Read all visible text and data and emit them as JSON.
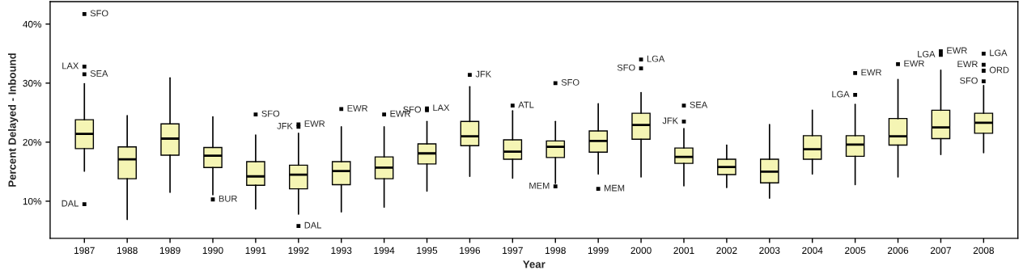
{
  "chart_data": {
    "type": "box",
    "xlabel": "Year",
    "ylabel": "Percent Delayed - Inbound",
    "x": [
      1987,
      1988,
      1989,
      1990,
      1991,
      1992,
      1993,
      1994,
      1995,
      1996,
      1997,
      1998,
      1999,
      2000,
      2001,
      2002,
      2003,
      2004,
      2005,
      2006,
      2007,
      2008
    ],
    "xlim": [
      1986.2,
      2008.8
    ],
    "xticks": [
      1987,
      1988,
      1989,
      1990,
      1991,
      1992,
      1993,
      1994,
      1995,
      1996,
      1997,
      1998,
      1999,
      2000,
      2001,
      2002,
      2003,
      2004,
      2005,
      2006,
      2007,
      2008
    ],
    "color": "#f5f5b4",
    "marker": "square",
    "grid": false,
    "legend": false,
    "ylim": [
      3.7,
      43.8
    ],
    "yticks": [
      {
        "value": 10,
        "label": "10%"
      },
      {
        "value": 20,
        "label": "20%"
      },
      {
        "value": 30,
        "label": "30%"
      },
      {
        "value": 40,
        "label": "40%"
      }
    ],
    "boxes": [
      {
        "low": 15.1,
        "q1": 18.9,
        "median": 21.4,
        "q3": 23.8,
        "high": 29.9
      },
      {
        "low": 6.9,
        "q1": 13.8,
        "median": 17.1,
        "q3": 19.2,
        "high": 24.5
      },
      {
        "low": 11.5,
        "q1": 17.8,
        "median": 20.6,
        "q3": 23.1,
        "high": 30.9
      },
      {
        "low": 11.1,
        "q1": 15.7,
        "median": 17.7,
        "q3": 19.1,
        "high": 24.3
      },
      {
        "low": 8.7,
        "q1": 12.7,
        "median": 14.2,
        "q3": 16.7,
        "high": 21.2
      },
      {
        "low": 7.8,
        "q1": 12.1,
        "median": 14.5,
        "q3": 16.1,
        "high": 21.5
      },
      {
        "low": 8.2,
        "q1": 12.8,
        "median": 15.1,
        "q3": 16.7,
        "high": 22.6
      },
      {
        "low": 9.0,
        "q1": 13.8,
        "median": 15.7,
        "q3": 17.5,
        "high": 22.6
      },
      {
        "low": 11.7,
        "q1": 16.3,
        "median": 18.1,
        "q3": 19.7,
        "high": 23.5
      },
      {
        "low": 14.2,
        "q1": 19.4,
        "median": 21.0,
        "q3": 23.5,
        "high": 29.4
      },
      {
        "low": 13.9,
        "q1": 17.1,
        "median": 18.4,
        "q3": 20.4,
        "high": 25.3
      },
      {
        "low": 13.0,
        "q1": 17.4,
        "median": 19.2,
        "q3": 20.2,
        "high": 23.5
      },
      {
        "low": 14.6,
        "q1": 18.3,
        "median": 20.2,
        "q3": 21.9,
        "high": 26.5
      },
      {
        "low": 14.1,
        "q1": 20.5,
        "median": 22.9,
        "q3": 24.9,
        "high": 28.4
      },
      {
        "low": 12.6,
        "q1": 16.4,
        "median": 17.5,
        "q3": 19.0,
        "high": 22.3
      },
      {
        "low": 12.3,
        "q1": 14.5,
        "median": 15.8,
        "q3": 17.1,
        "high": 19.5
      },
      {
        "low": 10.5,
        "q1": 13.1,
        "median": 15.0,
        "q3": 17.1,
        "high": 23.0
      },
      {
        "low": 14.6,
        "q1": 17.1,
        "median": 18.8,
        "q3": 21.1,
        "high": 25.4
      },
      {
        "low": 12.8,
        "q1": 17.6,
        "median": 19.6,
        "q3": 21.1,
        "high": 26.4
      },
      {
        "low": 14.1,
        "q1": 19.5,
        "median": 21.0,
        "q3": 24.0,
        "high": 30.6
      },
      {
        "low": 17.9,
        "q1": 20.6,
        "median": 22.5,
        "q3": 25.4,
        "high": 32.2
      },
      {
        "low": 18.2,
        "q1": 21.5,
        "median": 23.3,
        "q3": 24.9,
        "high": 29.6
      }
    ],
    "series": [
      {
        "type": "scatter",
        "color": "#000000",
        "x": [
          1987,
          1987,
          1987,
          1987,
          1990,
          1991,
          1992,
          1992,
          1992,
          1993,
          1994,
          1995,
          1995,
          1996,
          1997,
          1998,
          1998,
          1999,
          2000,
          2000,
          2001,
          2001,
          2005,
          2005,
          2006,
          2007,
          2007,
          2008,
          2008,
          2008,
          2008
        ],
        "values": [
          41.7,
          32.8,
          31.5,
          9.5,
          10.3,
          24.7,
          23.0,
          22.6,
          5.8,
          25.6,
          24.7,
          25.7,
          25.4,
          31.4,
          26.2,
          30.0,
          12.5,
          12.1,
          34.0,
          32.5,
          26.2,
          23.5,
          31.7,
          28.0,
          33.2,
          35.4,
          34.8,
          35.0,
          33.1,
          32.1,
          30.3
        ],
        "value_labels": [
          "SFO",
          "LAX",
          "SEA",
          "DAL",
          "BUR",
          "SFO",
          "EWR",
          "JFK",
          "DAL",
          "EWR",
          "EWR",
          "LAX",
          "SFO",
          "JFK",
          "ATL",
          "SFO",
          "MEM",
          "MEM",
          "LGA",
          "SFO",
          "SEA",
          "JFK",
          "EWR",
          "LGA",
          "EWR",
          "EWR",
          "LGA",
          "LGA",
          "EWR",
          "ORD",
          "SFO"
        ]
      }
    ]
  }
}
